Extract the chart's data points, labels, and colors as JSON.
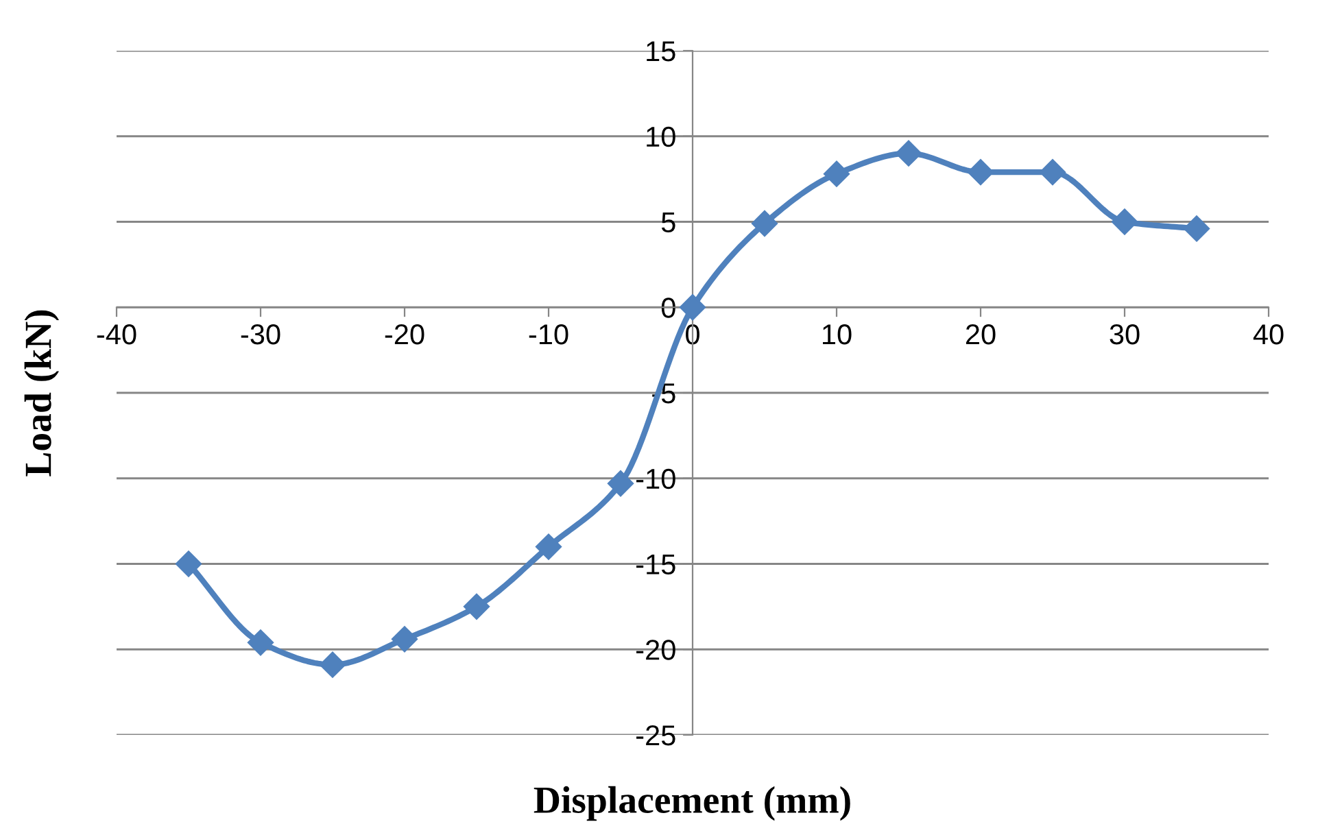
{
  "chart_data": {
    "type": "line",
    "xlabel": "Displacement (mm)",
    "ylabel": "Load (kN)",
    "x": [
      -35,
      -30,
      -25,
      -20,
      -15,
      -10,
      -5,
      0,
      5,
      10,
      15,
      20,
      25,
      30,
      35
    ],
    "series": [
      {
        "color": "#4f81bd",
        "values": [
          -15.0,
          -19.6,
          -20.9,
          -19.4,
          -17.5,
          -14.0,
          -10.3,
          0,
          4.9,
          7.8,
          9.0,
          7.9,
          7.9,
          5.0,
          4.6
        ]
      }
    ],
    "xlim": [
      -40,
      40
    ],
    "xticks": [
      -40,
      -30,
      -20,
      -10,
      0,
      10,
      20,
      30,
      40
    ],
    "ylim": [
      -25,
      15
    ],
    "yticks": [
      -25,
      -20,
      -15,
      -10,
      -5,
      0,
      5,
      10,
      15
    ],
    "grid": "y",
    "marker": "diamond",
    "line_style": "solid",
    "legend": false
  }
}
